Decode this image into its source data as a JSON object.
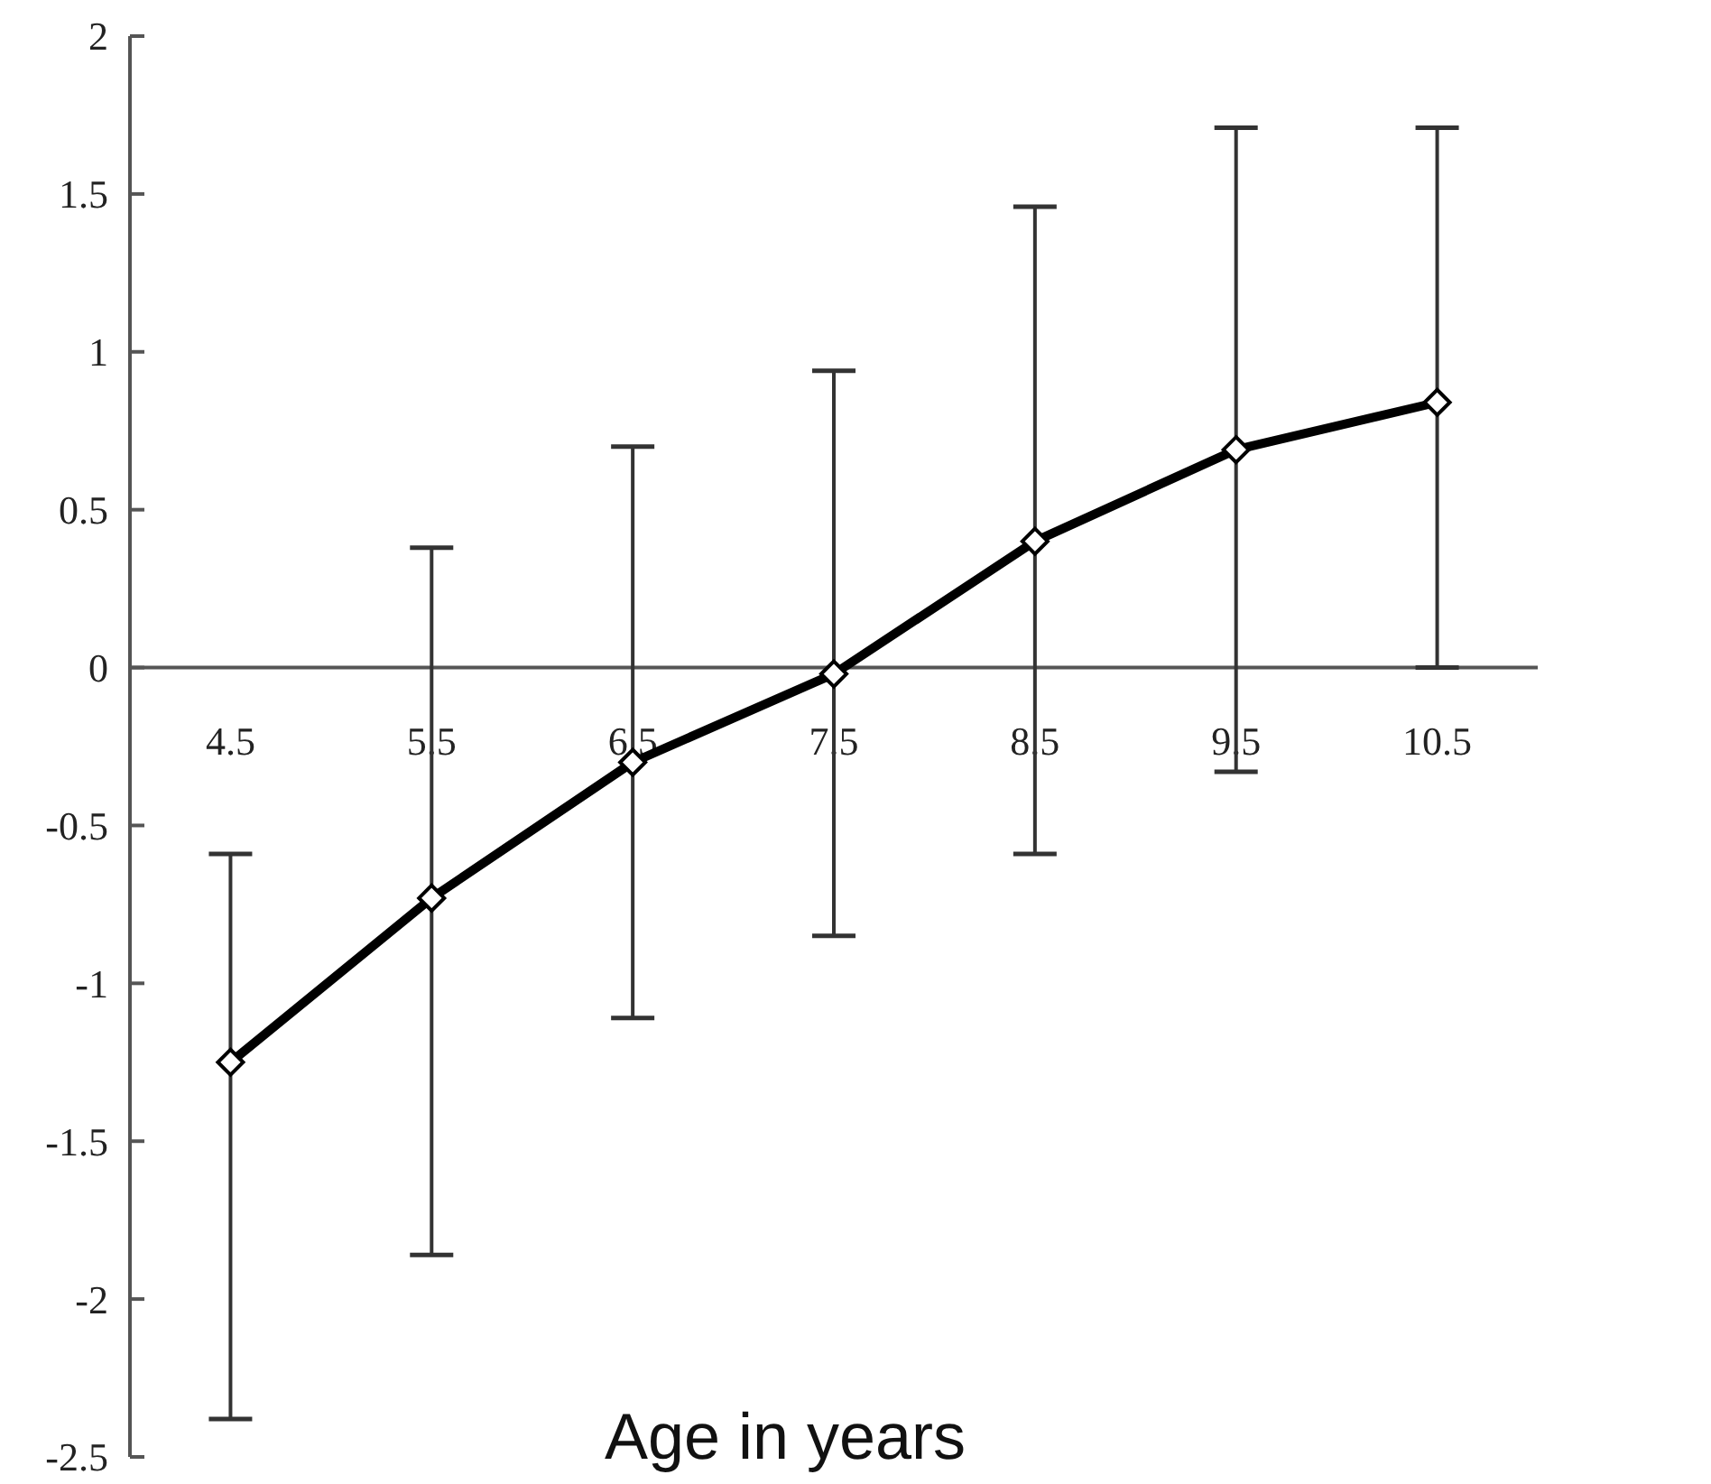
{
  "chart_data": {
    "type": "line",
    "xlabel": "Age in years",
    "categories": [
      "4.5",
      "5.5",
      "6.5",
      "7.5",
      "8.5",
      "9.5",
      "10.5"
    ],
    "series": [
      {
        "color": "#000000",
        "values": [
          -1.25,
          -0.73,
          -0.3,
          -0.02,
          0.4,
          0.69,
          0.84
        ],
        "errors": [
          [
            -2.38,
            -0.59
          ],
          [
            -1.86,
            0.38
          ],
          [
            -1.11,
            0.7
          ],
          [
            -0.85,
            0.94
          ],
          [
            -0.59,
            1.46
          ],
          [
            -0.33,
            1.71
          ],
          [
            0,
            1.71
          ]
        ]
      }
    ],
    "ylim": [
      -2.5,
      2
    ],
    "yticks": [
      -2.5,
      -2,
      -1.5,
      -1,
      -0.5,
      0,
      0.5,
      1,
      1.5,
      2
    ],
    "marker": "diamond",
    "line_style": "solid",
    "grid": false
  }
}
